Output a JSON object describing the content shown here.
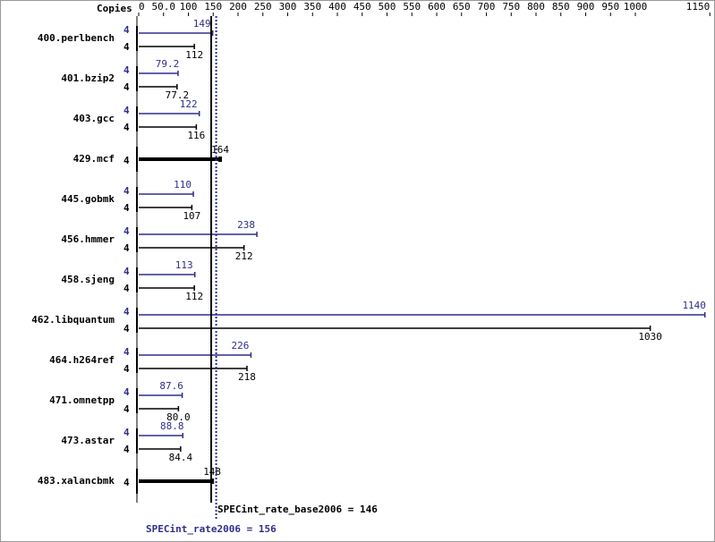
{
  "chart_data": {
    "type": "spec-bar",
    "copies_header": "Copies",
    "categories": [
      "400.perlbench",
      "401.bzip2",
      "403.gcc",
      "429.mcf",
      "445.gobmk",
      "456.hmmer",
      "458.sjeng",
      "462.libquantum",
      "464.h264ref",
      "471.omnetpp",
      "473.astar",
      "483.xalancbmk"
    ],
    "series": [
      {
        "name": "SPECint_rate2006",
        "color": "#2e2e8c",
        "values": [
          149,
          79.2,
          122,
          null,
          110,
          238,
          113,
          1140,
          226,
          87.6,
          88.8,
          null
        ],
        "copies": [
          4,
          4,
          4,
          null,
          4,
          4,
          4,
          4,
          4,
          4,
          4,
          null
        ]
      },
      {
        "name": "SPECint_rate_base2006",
        "color": "#000000",
        "values": [
          112,
          77.2,
          116,
          164,
          107,
          212,
          112,
          1030,
          218,
          80,
          84.4,
          148
        ],
        "value_labels": [
          "112",
          "77.2",
          "116",
          "164",
          "107",
          "212",
          "112",
          "1030",
          "218",
          "80.0",
          "84.4",
          "148"
        ],
        "copies": [
          4,
          4,
          4,
          4,
          4,
          4,
          4,
          4,
          4,
          4,
          4,
          4
        ]
      }
    ],
    "xlim": [
      0,
      1150
    ],
    "xticks": [
      0,
      {
        "value": 50,
        "label": "50.0"
      },
      100,
      150,
      200,
      250,
      300,
      350,
      400,
      450,
      500,
      550,
      600,
      650,
      700,
      750,
      800,
      850,
      900,
      950,
      1000,
      1150
    ],
    "reference_lines": [
      {
        "label": "SPECint_rate_base2006 = 146",
        "value": 146,
        "color": "#000000"
      },
      {
        "label": "SPECint_rate2006 = 156",
        "value": 156,
        "color": "#2e2e8c"
      }
    ]
  }
}
